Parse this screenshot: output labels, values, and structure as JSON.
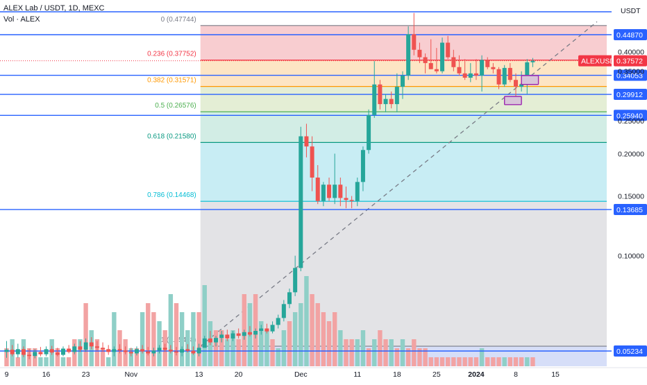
{
  "header": {
    "symbol_line": "ALEX Lab / USDT, 1D, MEXC",
    "volume_line": "Vol · ALEX"
  },
  "chart_data": {
    "type": "candlestick",
    "symbol": "ALEXUSDT",
    "currency": "USDT",
    "price_axis": {
      "ticks": [
        {
          "value": 0.4,
          "label": "0.40000"
        },
        {
          "value": 0.35,
          "label": "0.35000"
        },
        {
          "value": 0.25,
          "label": "0.25000"
        },
        {
          "value": 0.2,
          "label": "0.20000"
        },
        {
          "value": 0.15,
          "label": "0.15000"
        },
        {
          "value": 0.1,
          "label": "0.10000"
        }
      ],
      "scale": "log"
    },
    "time_axis": [
      {
        "day": 0,
        "label": "9"
      },
      {
        "day": 7,
        "label": "16"
      },
      {
        "day": 14,
        "label": "23"
      },
      {
        "day": 22,
        "label": "Nov"
      },
      {
        "day": 34,
        "label": "13"
      },
      {
        "day": 41,
        "label": "20"
      },
      {
        "day": 52,
        "label": "Dec"
      },
      {
        "day": 62,
        "label": "11"
      },
      {
        "day": 69,
        "label": "18"
      },
      {
        "day": 76,
        "label": "25"
      },
      {
        "day": 83,
        "label": "2024"
      },
      {
        "day": 90,
        "label": "8"
      },
      {
        "day": 97,
        "label": "15"
      }
    ],
    "horizontal_levels": [
      {
        "value": 0.51,
        "label": ""
      },
      {
        "value": 0.4487,
        "label": "0.44870"
      },
      {
        "value": 0.34053,
        "label": "0.34053"
      },
      {
        "value": 0.29912,
        "label": "0.29912"
      },
      {
        "value": 0.2594,
        "label": "0.25940"
      },
      {
        "value": 0.13685,
        "label": "0.13685"
      },
      {
        "value": 0.05234,
        "label": "0.05234"
      }
    ],
    "current_price": {
      "value": 0.37572,
      "label": "0.37572",
      "symbol_label": "ALEXUSDT"
    },
    "fibonacci": {
      "start_day": 35,
      "end_day": 100,
      "levels": [
        {
          "ratio": 0,
          "value": 0.47744,
          "label": "0 (0.47744)",
          "color": "#787b86",
          "fill": "#f8cdd0"
        },
        {
          "ratio": 0.236,
          "value": 0.37752,
          "label": "0.236 (0.37752)",
          "color": "#f23645",
          "fill": "#fde5c4"
        },
        {
          "ratio": 0.382,
          "value": 0.31571,
          "label": "0.382 (0.31571)",
          "color": "#ff9800",
          "fill": "#e4eed5"
        },
        {
          "ratio": 0.5,
          "value": 0.26576,
          "label": "0.5 (0.26576)",
          "color": "#4caf50",
          "fill": "#d2ede5"
        },
        {
          "ratio": 0.618,
          "value": 0.2158,
          "label": "0.618 (0.21580)",
          "color": "#089981",
          "fill": "#c8edf4"
        },
        {
          "ratio": 0.786,
          "value": 0.14468,
          "label": "0.786 (0.14468)",
          "color": "#00bcd4",
          "fill": "#e3e3e6"
        },
        {
          "ratio": 1,
          "value": 0.05408,
          "label": "1 (0.05408)",
          "color": "#787b86",
          "fill": "#d6def8"
        }
      ]
    },
    "colors": {
      "up": "#26a69a",
      "down": "#ef5350",
      "vol_up": "#8fcfc7",
      "vol_down": "#f2a3a3",
      "level_line": "#2962ff"
    },
    "candles": [
      {
        "day": 0,
        "o": 0.052,
        "h": 0.056,
        "l": 0.05,
        "c": 0.0528
      },
      {
        "day": 1,
        "o": 0.0528,
        "h": 0.0545,
        "l": 0.0505,
        "c": 0.0512
      },
      {
        "day": 2,
        "o": 0.0512,
        "h": 0.055,
        "l": 0.05,
        "c": 0.053
      },
      {
        "day": 3,
        "o": 0.053,
        "h": 0.054,
        "l": 0.0502,
        "c": 0.051
      },
      {
        "day": 4,
        "o": 0.051,
        "h": 0.0532,
        "l": 0.0495,
        "c": 0.0506
      },
      {
        "day": 5,
        "o": 0.0506,
        "h": 0.053,
        "l": 0.0498,
        "c": 0.052
      },
      {
        "day": 6,
        "o": 0.052,
        "h": 0.0538,
        "l": 0.0505,
        "c": 0.0512
      },
      {
        "day": 7,
        "o": 0.0512,
        "h": 0.054,
        "l": 0.0505,
        "c": 0.053
      },
      {
        "day": 8,
        "o": 0.053,
        "h": 0.0542,
        "l": 0.051,
        "c": 0.0518
      },
      {
        "day": 9,
        "o": 0.0518,
        "h": 0.0535,
        "l": 0.0505,
        "c": 0.051
      },
      {
        "day": 10,
        "o": 0.051,
        "h": 0.054,
        "l": 0.0505,
        "c": 0.0532
      },
      {
        "day": 11,
        "o": 0.0532,
        "h": 0.0545,
        "l": 0.0515,
        "c": 0.052
      },
      {
        "day": 12,
        "o": 0.052,
        "h": 0.055,
        "l": 0.0512,
        "c": 0.054
      },
      {
        "day": 13,
        "o": 0.054,
        "h": 0.056,
        "l": 0.052,
        "c": 0.0528
      },
      {
        "day": 14,
        "o": 0.0528,
        "h": 0.057,
        "l": 0.052,
        "c": 0.0555
      },
      {
        "day": 15,
        "o": 0.0555,
        "h": 0.0575,
        "l": 0.053,
        "c": 0.054
      },
      {
        "day": 16,
        "o": 0.054,
        "h": 0.056,
        "l": 0.0525,
        "c": 0.0535
      },
      {
        "day": 17,
        "o": 0.0535,
        "h": 0.0555,
        "l": 0.052,
        "c": 0.053
      },
      {
        "day": 18,
        "o": 0.053,
        "h": 0.0545,
        "l": 0.051,
        "c": 0.052
      },
      {
        "day": 19,
        "o": 0.052,
        "h": 0.054,
        "l": 0.0505,
        "c": 0.053
      },
      {
        "day": 20,
        "o": 0.053,
        "h": 0.0548,
        "l": 0.0515,
        "c": 0.0525
      },
      {
        "day": 21,
        "o": 0.0525,
        "h": 0.054,
        "l": 0.0512,
        "c": 0.052
      },
      {
        "day": 22,
        "o": 0.052,
        "h": 0.0535,
        "l": 0.0505,
        "c": 0.0515
      },
      {
        "day": 23,
        "o": 0.0515,
        "h": 0.054,
        "l": 0.0508,
        "c": 0.053
      },
      {
        "day": 24,
        "o": 0.053,
        "h": 0.0545,
        "l": 0.0515,
        "c": 0.0522
      },
      {
        "day": 25,
        "o": 0.0522,
        "h": 0.0538,
        "l": 0.0508,
        "c": 0.0515
      },
      {
        "day": 26,
        "o": 0.0515,
        "h": 0.0535,
        "l": 0.0505,
        "c": 0.0525
      },
      {
        "day": 27,
        "o": 0.0525,
        "h": 0.0545,
        "l": 0.0515,
        "c": 0.0535
      },
      {
        "day": 28,
        "o": 0.0535,
        "h": 0.055,
        "l": 0.052,
        "c": 0.0528
      },
      {
        "day": 29,
        "o": 0.0528,
        "h": 0.0545,
        "l": 0.0515,
        "c": 0.0522
      },
      {
        "day": 30,
        "o": 0.0522,
        "h": 0.0538,
        "l": 0.0508,
        "c": 0.0518
      },
      {
        "day": 31,
        "o": 0.0518,
        "h": 0.054,
        "l": 0.0505,
        "c": 0.053
      },
      {
        "day": 32,
        "o": 0.053,
        "h": 0.0548,
        "l": 0.0518,
        "c": 0.0524
      },
      {
        "day": 33,
        "o": 0.0524,
        "h": 0.054,
        "l": 0.051,
        "c": 0.0515
      },
      {
        "day": 34,
        "o": 0.0515,
        "h": 0.055,
        "l": 0.0505,
        "c": 0.0535
      },
      {
        "day": 35,
        "o": 0.0535,
        "h": 0.058,
        "l": 0.0541,
        "c": 0.057
      },
      {
        "day": 36,
        "o": 0.057,
        "h": 0.06,
        "l": 0.0545,
        "c": 0.0555
      },
      {
        "day": 37,
        "o": 0.0555,
        "h": 0.058,
        "l": 0.054,
        "c": 0.0572
      },
      {
        "day": 38,
        "o": 0.0572,
        "h": 0.06,
        "l": 0.0555,
        "c": 0.0585
      },
      {
        "day": 39,
        "o": 0.0585,
        "h": 0.0605,
        "l": 0.056,
        "c": 0.057
      },
      {
        "day": 40,
        "o": 0.057,
        "h": 0.06,
        "l": 0.056,
        "c": 0.059
      },
      {
        "day": 41,
        "o": 0.059,
        "h": 0.061,
        "l": 0.057,
        "c": 0.058
      },
      {
        "day": 42,
        "o": 0.058,
        "h": 0.0605,
        "l": 0.0565,
        "c": 0.0595
      },
      {
        "day": 43,
        "o": 0.0595,
        "h": 0.062,
        "l": 0.0578,
        "c": 0.0585
      },
      {
        "day": 44,
        "o": 0.0585,
        "h": 0.061,
        "l": 0.057,
        "c": 0.06
      },
      {
        "day": 45,
        "o": 0.06,
        "h": 0.0625,
        "l": 0.0585,
        "c": 0.061
      },
      {
        "day": 46,
        "o": 0.061,
        "h": 0.063,
        "l": 0.059,
        "c": 0.0598
      },
      {
        "day": 47,
        "o": 0.0598,
        "h": 0.064,
        "l": 0.059,
        "c": 0.0625
      },
      {
        "day": 48,
        "o": 0.0625,
        "h": 0.067,
        "l": 0.061,
        "c": 0.0655
      },
      {
        "day": 49,
        "o": 0.0655,
        "h": 0.074,
        "l": 0.064,
        "c": 0.072
      },
      {
        "day": 50,
        "o": 0.072,
        "h": 0.08,
        "l": 0.07,
        "c": 0.078
      },
      {
        "day": 51,
        "o": 0.078,
        "h": 0.1,
        "l": 0.076,
        "c": 0.092
      },
      {
        "day": 52,
        "o": 0.092,
        "h": 0.24,
        "l": 0.09,
        "c": 0.225
      },
      {
        "day": 53,
        "o": 0.225,
        "h": 0.245,
        "l": 0.195,
        "c": 0.21
      },
      {
        "day": 54,
        "o": 0.21,
        "h": 0.225,
        "l": 0.155,
        "c": 0.17
      },
      {
        "day": 55,
        "o": 0.17,
        "h": 0.185,
        "l": 0.142,
        "c": 0.145
      },
      {
        "day": 56,
        "o": 0.145,
        "h": 0.165,
        "l": 0.14,
        "c": 0.162
      },
      {
        "day": 57,
        "o": 0.162,
        "h": 0.17,
        "l": 0.145,
        "c": 0.148
      },
      {
        "day": 58,
        "o": 0.148,
        "h": 0.2,
        "l": 0.142,
        "c": 0.162
      },
      {
        "day": 59,
        "o": 0.162,
        "h": 0.17,
        "l": 0.14,
        "c": 0.148
      },
      {
        "day": 60,
        "o": 0.148,
        "h": 0.16,
        "l": 0.138,
        "c": 0.146
      },
      {
        "day": 61,
        "o": 0.146,
        "h": 0.15,
        "l": 0.138,
        "c": 0.145
      },
      {
        "day": 62,
        "o": 0.145,
        "h": 0.17,
        "l": 0.14,
        "c": 0.165
      },
      {
        "day": 63,
        "o": 0.165,
        "h": 0.21,
        "l": 0.155,
        "c": 0.205
      },
      {
        "day": 64,
        "o": 0.205,
        "h": 0.27,
        "l": 0.2,
        "c": 0.26
      },
      {
        "day": 65,
        "o": 0.26,
        "h": 0.375,
        "l": 0.255,
        "c": 0.32
      },
      {
        "day": 66,
        "o": 0.32,
        "h": 0.33,
        "l": 0.27,
        "c": 0.28
      },
      {
        "day": 67,
        "o": 0.28,
        "h": 0.3,
        "l": 0.265,
        "c": 0.29
      },
      {
        "day": 68,
        "o": 0.29,
        "h": 0.305,
        "l": 0.272,
        "c": 0.28
      },
      {
        "day": 69,
        "o": 0.28,
        "h": 0.345,
        "l": 0.265,
        "c": 0.315
      },
      {
        "day": 70,
        "o": 0.315,
        "h": 0.35,
        "l": 0.29,
        "c": 0.34
      },
      {
        "day": 71,
        "o": 0.34,
        "h": 0.475,
        "l": 0.33,
        "c": 0.45
      },
      {
        "day": 72,
        "o": 0.45,
        "h": 0.52,
        "l": 0.39,
        "c": 0.405
      },
      {
        "day": 73,
        "o": 0.405,
        "h": 0.425,
        "l": 0.37,
        "c": 0.385
      },
      {
        "day": 74,
        "o": 0.385,
        "h": 0.395,
        "l": 0.345,
        "c": 0.37
      },
      {
        "day": 75,
        "o": 0.37,
        "h": 0.435,
        "l": 0.355,
        "c": 0.355
      },
      {
        "day": 76,
        "o": 0.355,
        "h": 0.41,
        "l": 0.345,
        "c": 0.35
      },
      {
        "day": 77,
        "o": 0.35,
        "h": 0.44,
        "l": 0.345,
        "c": 0.425
      },
      {
        "day": 78,
        "o": 0.425,
        "h": 0.445,
        "l": 0.38,
        "c": 0.385
      },
      {
        "day": 79,
        "o": 0.385,
        "h": 0.405,
        "l": 0.35,
        "c": 0.36
      },
      {
        "day": 80,
        "o": 0.36,
        "h": 0.39,
        "l": 0.34,
        "c": 0.345
      },
      {
        "day": 81,
        "o": 0.345,
        "h": 0.38,
        "l": 0.33,
        "c": 0.335
      },
      {
        "day": 82,
        "o": 0.335,
        "h": 0.37,
        "l": 0.325,
        "c": 0.345
      },
      {
        "day": 83,
        "o": 0.345,
        "h": 0.38,
        "l": 0.33,
        "c": 0.34
      },
      {
        "day": 84,
        "o": 0.34,
        "h": 0.39,
        "l": 0.305,
        "c": 0.378
      },
      {
        "day": 85,
        "o": 0.378,
        "h": 0.385,
        "l": 0.355,
        "c": 0.36
      },
      {
        "day": 86,
        "o": 0.36,
        "h": 0.37,
        "l": 0.345,
        "c": 0.355
      },
      {
        "day": 87,
        "o": 0.355,
        "h": 0.36,
        "l": 0.31,
        "c": 0.32
      },
      {
        "day": 88,
        "o": 0.32,
        "h": 0.365,
        "l": 0.315,
        "c": 0.358
      },
      {
        "day": 89,
        "o": 0.358,
        "h": 0.37,
        "l": 0.325,
        "c": 0.33
      },
      {
        "day": 90,
        "o": 0.33,
        "h": 0.345,
        "l": 0.295,
        "c": 0.315
      },
      {
        "day": 91,
        "o": 0.315,
        "h": 0.35,
        "l": 0.305,
        "c": 0.32
      },
      {
        "day": 92,
        "o": 0.32,
        "h": 0.38,
        "l": 0.3,
        "c": 0.372
      },
      {
        "day": 93,
        "o": 0.372,
        "h": 0.383,
        "l": 0.36,
        "c": 0.3757
      }
    ],
    "volume": [
      2,
      3,
      1,
      3,
      2,
      2,
      1,
      1,
      3,
      2,
      1,
      1,
      3,
      3,
      7,
      4,
      3,
      2,
      1,
      6,
      4,
      3,
      2,
      2,
      6,
      7,
      6,
      5,
      4,
      8,
      7,
      6,
      4,
      6,
      6,
      9,
      5,
      4,
      4,
      3,
      4,
      3,
      8,
      7,
      8,
      5,
      4,
      3,
      2,
      4,
      5,
      6,
      7,
      10,
      8,
      7,
      6,
      5,
      6,
      4,
      3,
      3,
      3,
      4,
      2,
      3,
      4,
      3,
      3,
      2,
      3,
      2,
      3,
      2,
      2,
      1,
      1,
      1,
      1,
      1,
      1,
      1,
      1,
      1,
      2,
      1,
      1,
      1,
      1,
      1,
      1,
      1,
      1,
      1
    ],
    "volume_dir": [
      "d",
      "u",
      "d",
      "u",
      "d",
      "d",
      "u",
      "u",
      "u",
      "d",
      "u",
      "d",
      "d",
      "u",
      "d",
      "u",
      "d",
      "d",
      "u",
      "u",
      "d",
      "d",
      "u",
      "d",
      "u",
      "d",
      "d",
      "u",
      "d",
      "u",
      "d",
      "u",
      "u",
      "u",
      "d",
      "u",
      "u",
      "d",
      "d",
      "u",
      "u",
      "d",
      "d",
      "u",
      "d",
      "u",
      "u",
      "d",
      "u",
      "u",
      "d",
      "u",
      "u",
      "u",
      "d",
      "d",
      "d",
      "d",
      "d",
      "u",
      "d",
      "d",
      "u",
      "u",
      "d",
      "u",
      "d",
      "d",
      "u",
      "d",
      "u",
      "d",
      "d",
      "d",
      "d",
      "d",
      "d",
      "d",
      "d",
      "d",
      "d",
      "d",
      "d",
      "d",
      "u",
      "d",
      "d",
      "d",
      "u",
      "d",
      "d",
      "d",
      "u",
      "d"
    ],
    "zones": [
      {
        "from_day": 91,
        "to_day": 94,
        "top": 0.34,
        "bottom": 0.32
      },
      {
        "from_day": 88,
        "to_day": 91,
        "top": 0.295,
        "bottom": 0.279
      }
    ]
  }
}
